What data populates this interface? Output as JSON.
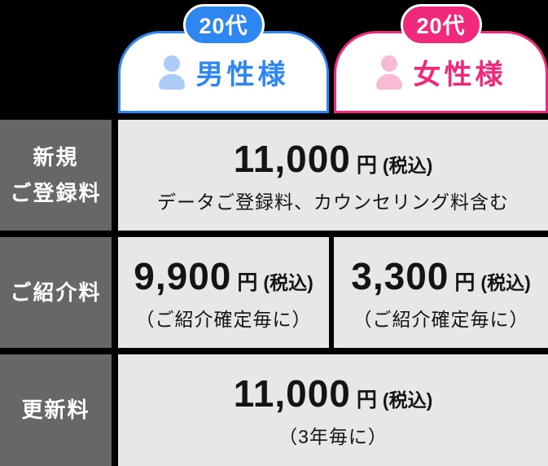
{
  "colors": {
    "background": "#000000",
    "male_accent": "#2e86f1",
    "male_icon_fill": "#abccf8",
    "female_accent": "#f1297d",
    "female_icon_fill": "#f8bad4",
    "row_label_bg": "#676767",
    "cell_bg": "#e7e7e6",
    "price_text": "#141414"
  },
  "header": {
    "male": {
      "badge": "20代",
      "label": "男性様",
      "icon": "person-icon"
    },
    "female": {
      "badge": "20代",
      "label": "女性様",
      "icon": "person-icon"
    }
  },
  "rows": [
    {
      "label_line1": "新規",
      "label_line2": "ご登録料",
      "cells": [
        {
          "price": "11,000",
          "unit": "円",
          "tax": "(税込)",
          "note": "データご登録料、カウンセリング料含む"
        }
      ]
    },
    {
      "label": "ご紹介料",
      "cells": [
        {
          "price": "9,900",
          "unit": "円",
          "tax": "(税込)",
          "note": "（ご紹介確定毎に）"
        },
        {
          "price": "3,300",
          "unit": "円",
          "tax": "(税込)",
          "note": "（ご紹介確定毎に）"
        }
      ]
    },
    {
      "label": "更新料",
      "cells": [
        {
          "price": "11,000",
          "unit": "円",
          "tax": "(税込)",
          "note": "（3年毎に）"
        }
      ]
    }
  ],
  "chart_data": {
    "type": "table",
    "columns": [
      "20代 男性様",
      "20代 女性様"
    ],
    "row_labels": [
      "新規ご登録料",
      "ご紹介料",
      "更新料"
    ],
    "cells": [
      {
        "row": "新規ご登録料",
        "column": "both",
        "value": "11,000円(税込)",
        "note": "データご登録料、カウンセリング料含む"
      },
      {
        "row": "ご紹介料",
        "column": "20代 男性様",
        "value": "9,900円(税込)",
        "note": "（ご紹介確定毎に）"
      },
      {
        "row": "ご紹介料",
        "column": "20代 女性様",
        "value": "3,300円(税込)",
        "note": "（ご紹介確定毎に）"
      },
      {
        "row": "更新料",
        "column": "both",
        "value": "11,000円(税込)",
        "note": "（3年毎に）"
      }
    ]
  }
}
